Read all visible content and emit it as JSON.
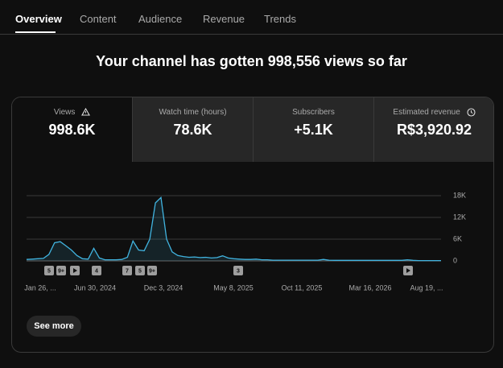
{
  "tabs": [
    "Overview",
    "Content",
    "Audience",
    "Revenue",
    "Trends"
  ],
  "headline": "Your channel has gotten 998,556 views so far",
  "metrics": [
    {
      "label": "Views",
      "value": "998.6K"
    },
    {
      "label": "Watch time (hours)",
      "value": "78.6K"
    },
    {
      "label": "Subscribers",
      "value": "+5.1K"
    },
    {
      "label": "Estimated revenue",
      "value": "R$3,920.92"
    }
  ],
  "chart_data": {
    "type": "line",
    "color": "#41b4e0",
    "values": [
      400,
      500,
      600,
      700,
      1800,
      5000,
      5300,
      4200,
      3000,
      1500,
      600,
      500,
      3500,
      800,
      300,
      300,
      300,
      400,
      1000,
      5500,
      3000,
      2800,
      6000,
      16000,
      17500,
      6000,
      2500,
      1500,
      1200,
      1000,
      1100,
      900,
      1000,
      800,
      900,
      1400,
      800,
      600,
      500,
      400,
      400,
      500,
      300,
      300,
      200,
      200,
      200,
      200,
      200,
      200,
      200,
      200,
      200,
      400,
      200,
      150,
      150,
      150,
      150,
      150,
      150,
      150,
      150,
      150,
      150,
      150,
      150,
      150,
      300,
      150,
      100,
      100,
      100,
      100,
      100
    ],
    "ylim": [
      0,
      18000
    ],
    "yticks": [
      0,
      {
        "value": 6000,
        "label": "6K"
      },
      {
        "value": 12000,
        "label": "12K"
      },
      {
        "value": 18000,
        "label": "18K"
      }
    ],
    "grid": true,
    "x_labels": [
      "Jan 26, ...",
      "Jun 30, 2024",
      "Dec 3, 2024",
      "May 8, 2025",
      "Oct 11, 2025",
      "Mar 16, 2026",
      "Aug 19, ..."
    ],
    "annotations": [
      "5",
      "9+",
      "4",
      "7",
      "5",
      "9+",
      "3"
    ]
  },
  "button": "See more"
}
